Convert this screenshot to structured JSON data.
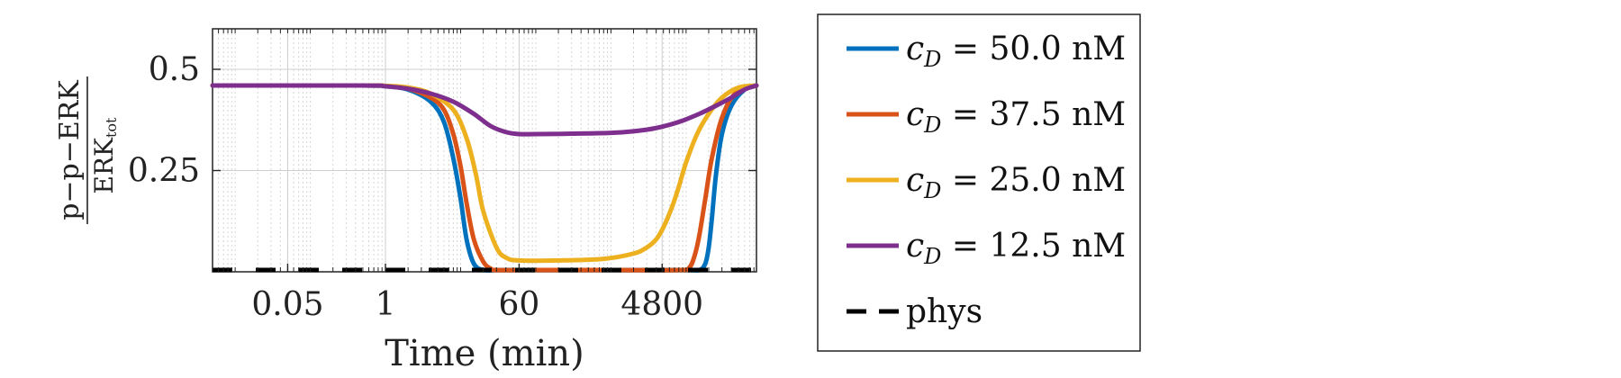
{
  "chart_data": {
    "type": "line",
    "x_scale": "log",
    "xlabel": "Time (min)",
    "ylabel": {
      "numerator": "p−p−ERK",
      "denominator_base": "ERK",
      "denominator_sub": "tot"
    },
    "xlim": [
      0.005,
      86400
    ],
    "ylim": [
      0,
      0.6
    ],
    "xticks": [
      {
        "value": 0.05,
        "label": "0.05"
      },
      {
        "value": 1,
        "label": "1"
      },
      {
        "value": 60,
        "label": "60"
      },
      {
        "value": 4800,
        "label": "4800"
      }
    ],
    "yticks": [
      {
        "value": 0.25,
        "label": "0.25"
      },
      {
        "value": 0.5,
        "label": "0.5"
      }
    ],
    "grid": true,
    "legend_position": "outside-right",
    "series": [
      {
        "name_sym": "c",
        "name_sub": "D",
        "name_rest": " = 50.0 nM",
        "color": "#0072BD",
        "style": "solid",
        "x": [
          0.005,
          0.5,
          1,
          2,
          4,
          6,
          8,
          10,
          12,
          15,
          20,
          30,
          100,
          1000,
          10000,
          15000,
          18000,
          20000,
          22000,
          25000,
          30000,
          40000,
          60000,
          86400
        ],
        "y": [
          0.46,
          0.46,
          0.458,
          0.45,
          0.42,
          0.37,
          0.28,
          0.18,
          0.08,
          0.02,
          0.002,
          0.0,
          0.0,
          0.0,
          0.0,
          0.004,
          0.02,
          0.06,
          0.13,
          0.24,
          0.34,
          0.41,
          0.45,
          0.46
        ]
      },
      {
        "name_sym": "c",
        "name_sub": "D",
        "name_rest": " = 37.5 nM",
        "color": "#D95319",
        "style": "solid",
        "x": [
          0.005,
          0.5,
          1,
          2,
          4,
          6,
          8,
          10,
          12,
          15,
          20,
          25,
          30,
          100,
          1000,
          8000,
          11000,
          13000,
          15000,
          18000,
          22000,
          30000,
          45000,
          86400
        ],
        "y": [
          0.46,
          0.46,
          0.459,
          0.452,
          0.43,
          0.4,
          0.34,
          0.26,
          0.17,
          0.08,
          0.025,
          0.008,
          0.002,
          0.0,
          0.0,
          0.0,
          0.01,
          0.04,
          0.09,
          0.18,
          0.28,
          0.38,
          0.44,
          0.46
        ]
      },
      {
        "name_sym": "c",
        "name_sub": "D",
        "name_rest": " = 25.0 nM",
        "color": "#EDB120",
        "style": "solid",
        "x": [
          0.005,
          0.5,
          1,
          2,
          4,
          8,
          12,
          16,
          20,
          30,
          40,
          60,
          200,
          800,
          2000,
          3000,
          4000,
          5000,
          6500,
          8000,
          10000,
          14000,
          20000,
          30000,
          50000,
          86400
        ],
        "y": [
          0.46,
          0.46,
          0.459,
          0.455,
          0.44,
          0.4,
          0.33,
          0.24,
          0.15,
          0.06,
          0.035,
          0.028,
          0.028,
          0.032,
          0.045,
          0.06,
          0.08,
          0.11,
          0.16,
          0.21,
          0.27,
          0.34,
          0.39,
          0.43,
          0.455,
          0.46
        ]
      },
      {
        "name_sym": "c",
        "name_sub": "D",
        "name_rest": " = 12.5 nM",
        "color": "#7E2F8E",
        "style": "solid",
        "x": [
          0.005,
          0.5,
          1,
          2,
          4,
          8,
          15,
          25,
          40,
          60,
          100,
          300,
          1000,
          2000,
          4000,
          8000,
          15000,
          25000,
          40000,
          60000,
          86400
        ],
        "y": [
          0.46,
          0.46,
          0.458,
          0.452,
          0.44,
          0.42,
          0.39,
          0.36,
          0.345,
          0.34,
          0.34,
          0.341,
          0.343,
          0.347,
          0.355,
          0.37,
          0.39,
          0.41,
          0.43,
          0.45,
          0.46
        ]
      },
      {
        "name": "phys",
        "color": "#000000",
        "style": "dashed",
        "x": [
          0.005,
          86400
        ],
        "y": [
          0.0,
          0.0
        ]
      }
    ]
  }
}
